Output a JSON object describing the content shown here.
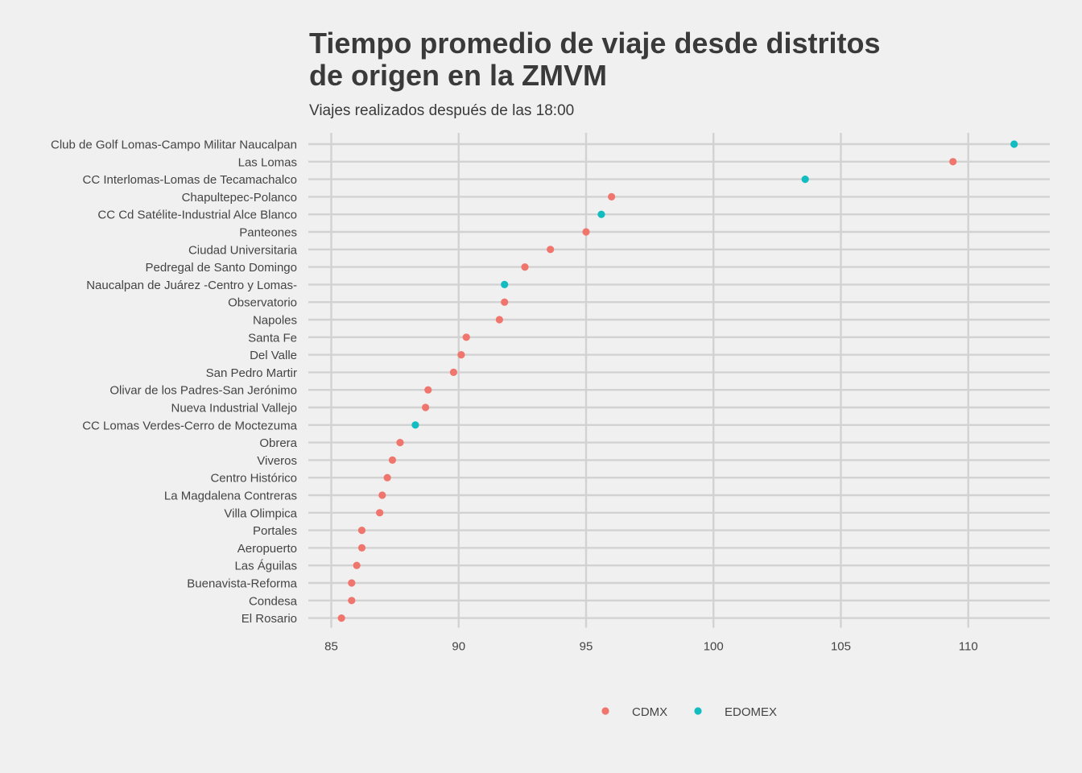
{
  "chart_data": {
    "type": "scatter",
    "title_lines": [
      "Tiempo promedio de viaje desde distritos",
      "de origen en la ZMVM"
    ],
    "subtitle": "Viajes realizados después de las 18:00",
    "xlabel": "",
    "ylabel": "",
    "xlim": [
      84.1,
      113.2
    ],
    "xticks": [
      85,
      90,
      95,
      100,
      105,
      110
    ],
    "grid": true,
    "legend_position": "bottom",
    "colors": {
      "CDMX": "#f0766d",
      "EDOMEX": "#13bcc0"
    },
    "legend": [
      "CDMX",
      "EDOMEX"
    ],
    "points": [
      {
        "label": "Club de Golf Lomas-Campo Militar Naucalpan",
        "value": 111.8,
        "group": "EDOMEX"
      },
      {
        "label": "Las Lomas",
        "value": 109.4,
        "group": "CDMX"
      },
      {
        "label": "CC Interlomas-Lomas de Tecamachalco",
        "value": 103.6,
        "group": "EDOMEX"
      },
      {
        "label": "Chapultepec-Polanco",
        "value": 96.0,
        "group": "CDMX"
      },
      {
        "label": "CC Cd Satélite-Industrial Alce Blanco",
        "value": 95.6,
        "group": "EDOMEX"
      },
      {
        "label": "Panteones",
        "value": 95.0,
        "group": "CDMX"
      },
      {
        "label": "Ciudad Universitaria",
        "value": 93.6,
        "group": "CDMX"
      },
      {
        "label": "Pedregal de Santo Domingo",
        "value": 92.6,
        "group": "CDMX"
      },
      {
        "label": "Naucalpan de Juárez -Centro y Lomas-",
        "value": 91.8,
        "group": "EDOMEX"
      },
      {
        "label": "Observatorio",
        "value": 91.8,
        "group": "CDMX"
      },
      {
        "label": "Napoles",
        "value": 91.6,
        "group": "CDMX"
      },
      {
        "label": "Santa Fe",
        "value": 90.3,
        "group": "CDMX"
      },
      {
        "label": "Del Valle",
        "value": 90.1,
        "group": "CDMX"
      },
      {
        "label": "San Pedro Martir",
        "value": 89.8,
        "group": "CDMX"
      },
      {
        "label": "Olivar de los Padres-San Jerónimo",
        "value": 88.8,
        "group": "CDMX"
      },
      {
        "label": "Nueva Industrial Vallejo",
        "value": 88.7,
        "group": "CDMX"
      },
      {
        "label": "CC Lomas Verdes-Cerro de Moctezuma",
        "value": 88.3,
        "group": "EDOMEX"
      },
      {
        "label": "Obrera",
        "value": 87.7,
        "group": "CDMX"
      },
      {
        "label": "Viveros",
        "value": 87.4,
        "group": "CDMX"
      },
      {
        "label": "Centro Histórico",
        "value": 87.2,
        "group": "CDMX"
      },
      {
        "label": "La Magdalena Contreras",
        "value": 87.0,
        "group": "CDMX"
      },
      {
        "label": "Villa Olimpica",
        "value": 86.9,
        "group": "CDMX"
      },
      {
        "label": "Portales",
        "value": 86.2,
        "group": "CDMX"
      },
      {
        "label": "Aeropuerto",
        "value": 86.2,
        "group": "CDMX"
      },
      {
        "label": "Las Águilas",
        "value": 86.0,
        "group": "CDMX"
      },
      {
        "label": "Buenavista-Reforma",
        "value": 85.8,
        "group": "CDMX"
      },
      {
        "label": "Condesa",
        "value": 85.8,
        "group": "CDMX"
      },
      {
        "label": "El Rosario",
        "value": 85.4,
        "group": "CDMX"
      }
    ]
  }
}
